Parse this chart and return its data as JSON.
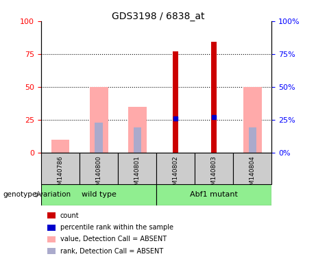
{
  "title": "GDS3198 / 6838_at",
  "samples": [
    "GSM140786",
    "GSM140800",
    "GSM140801",
    "GSM140802",
    "GSM140803",
    "GSM140804"
  ],
  "groups": [
    {
      "name": "wild type",
      "color": "#90ee90",
      "samples": [
        0,
        1,
        2
      ]
    },
    {
      "name": "Abf1 mutant",
      "color": "#90ee90",
      "samples": [
        3,
        4,
        5
      ]
    }
  ],
  "count_values": [
    0,
    0,
    0,
    77,
    84,
    0
  ],
  "percentile_rank": [
    0,
    0,
    0,
    26,
    27,
    0
  ],
  "value_absent": [
    10,
    50,
    35,
    0,
    0,
    50
  ],
  "rank_absent": [
    0,
    23,
    19,
    0,
    0,
    19
  ],
  "bar_width": 0.4,
  "ylim": [
    0,
    100
  ],
  "yticks": [
    0,
    25,
    50,
    75,
    100
  ],
  "count_color": "#cc0000",
  "percentile_color": "#0000cc",
  "value_absent_color": "#ffaaaa",
  "rank_absent_color": "#aaaacc",
  "grid_color": "#000000",
  "bg_color": "#cccccc",
  "group_label_x": "genotype/variation",
  "legend_items": [
    {
      "label": "count",
      "color": "#cc0000"
    },
    {
      "label": "percentile rank within the sample",
      "color": "#0000cc"
    },
    {
      "label": "value, Detection Call = ABSENT",
      "color": "#ffaaaa"
    },
    {
      "label": "rank, Detection Call = ABSENT",
      "color": "#aaaacc"
    }
  ]
}
